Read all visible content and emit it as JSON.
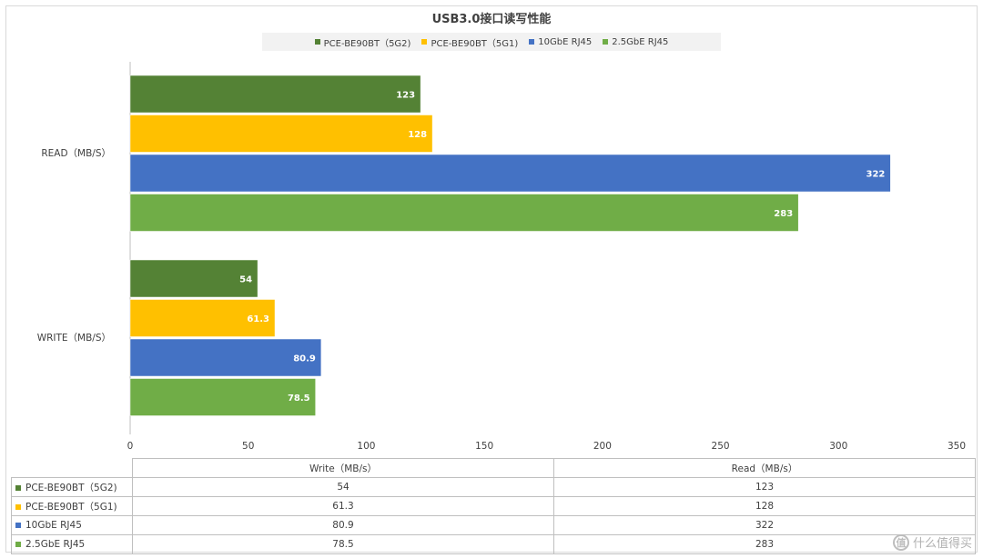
{
  "chart_data": {
    "type": "bar",
    "orientation": "horizontal",
    "title": "USB3.0接口读写性能",
    "categories": [
      "READ（MB/S）",
      "WRITE（MB/S）"
    ],
    "series": [
      {
        "name": "PCE-BE90BT（5G2)",
        "color": "#548235",
        "values": [
          123,
          54
        ]
      },
      {
        "name": "PCE-BE90BT（5G1)",
        "color": "#ffc000",
        "values": [
          128,
          61.3
        ]
      },
      {
        "name": "10GbE RJ45",
        "color": "#4472c4",
        "values": [
          322,
          80.9
        ]
      },
      {
        "name": "2.5GbE RJ45",
        "color": "#70ad47",
        "values": [
          283,
          78.5
        ]
      }
    ],
    "value_labels": {
      "read": [
        "123",
        "128",
        "322",
        "283"
      ],
      "write": [
        "54",
        "61.3",
        "80.9",
        "78.5"
      ]
    },
    "xlim": [
      0,
      350
    ],
    "x_ticks": [
      "0",
      "50",
      "100",
      "150",
      "200",
      "250",
      "300",
      "350"
    ],
    "grid": false,
    "legend": "top"
  },
  "table": {
    "columns": [
      "Write（MB/s）",
      "Read（MB/s）"
    ],
    "rows": [
      {
        "label": "PCE-BE90BT（5G2)",
        "color": "#548235",
        "write": "54",
        "read": "123"
      },
      {
        "label": "PCE-BE90BT（5G1)",
        "color": "#ffc000",
        "write": "61.3",
        "read": "128"
      },
      {
        "label": "10GbE RJ45",
        "color": "#4472c4",
        "write": "80.9",
        "read": "322"
      },
      {
        "label": "2.5GbE RJ45",
        "color": "#70ad47",
        "write": "78.5",
        "read": "283"
      }
    ]
  },
  "watermark": {
    "logo": "值",
    "text": "什么值得买"
  }
}
